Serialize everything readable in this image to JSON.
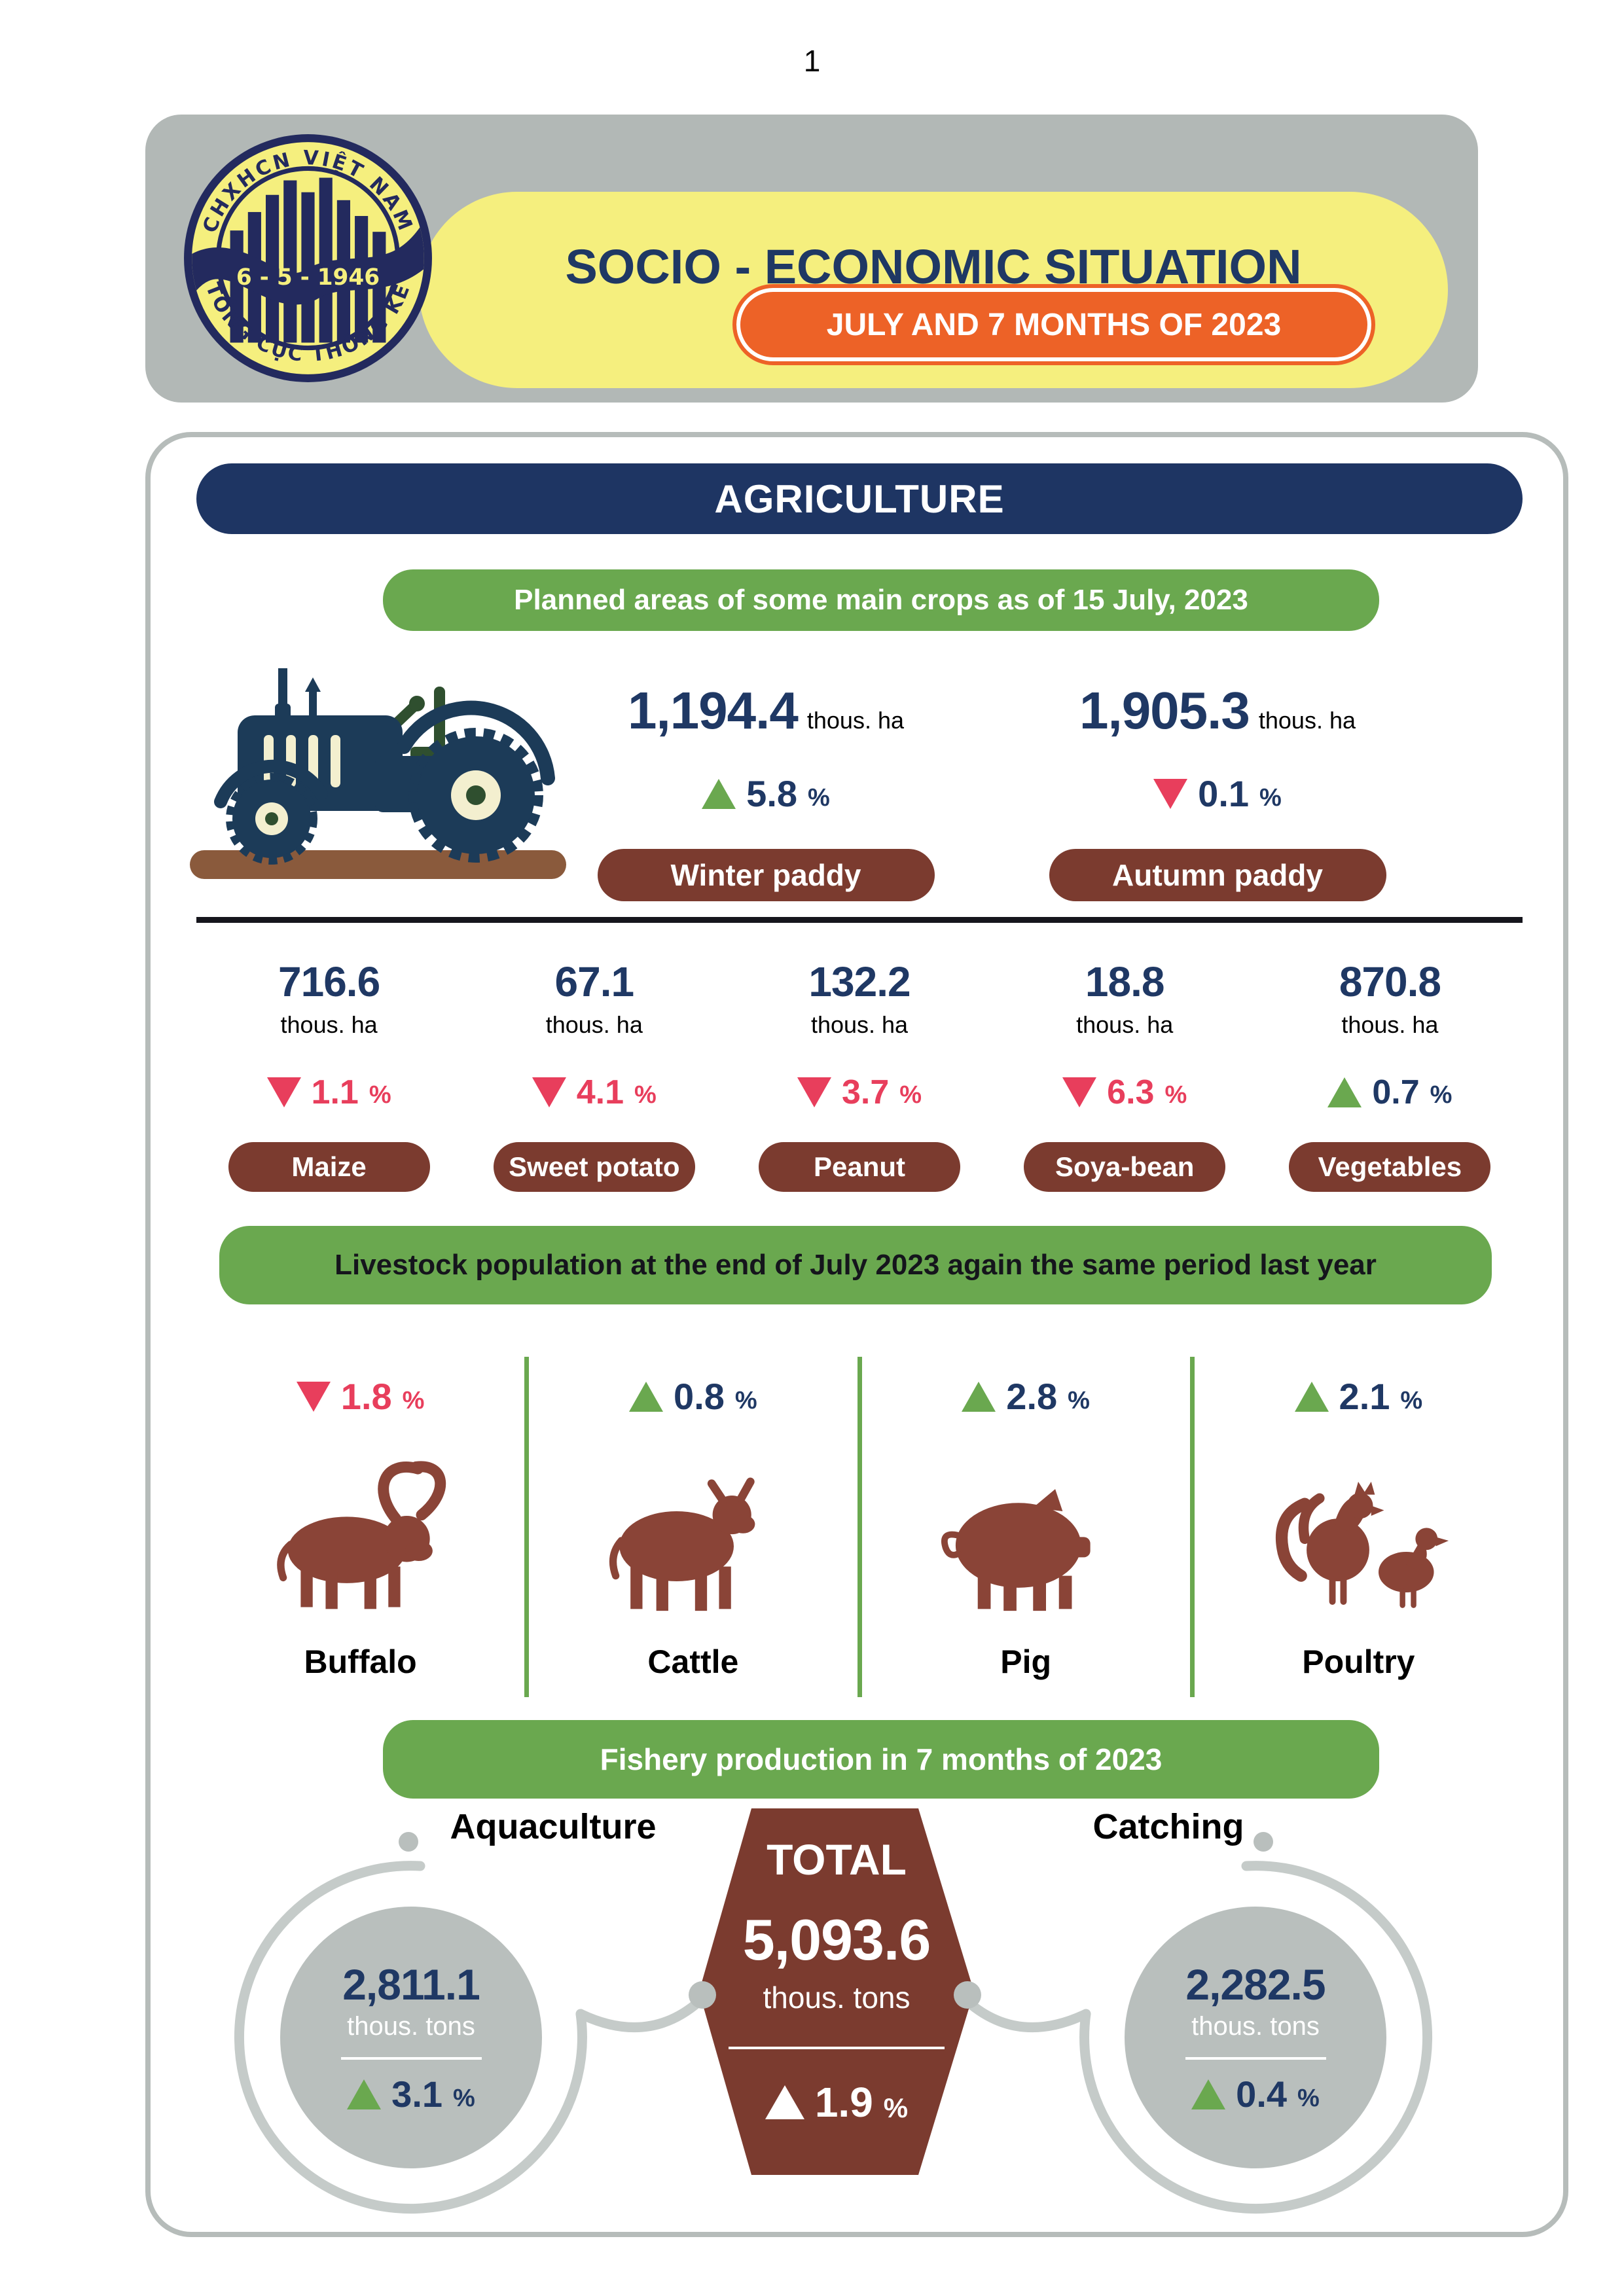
{
  "page": {
    "number": "1"
  },
  "ui": {
    "percent": "%"
  },
  "header": {
    "title": "SOCIO - ECONOMIC SITUATION",
    "subtitle": "JULY AND 7 MONTHS OF 2023",
    "logo": {
      "top_text": "CHXHCN VIỆT NAM",
      "band_text": "6 - 5 - 1946",
      "bottom_text": "TỔNG CỤC THỐNG KÊ"
    }
  },
  "section": {
    "title": "AGRICULTURE"
  },
  "crops": {
    "banner": "Planned areas of some main crops as of 15 July, 2023",
    "paddies": [
      {
        "name": "Winter paddy",
        "value": "1,194.4",
        "unit": "thous. ha",
        "change": "5.8",
        "direction": "up"
      },
      {
        "name": "Autumn paddy",
        "value": "1,905.3",
        "unit": "thous. ha",
        "change": "0.1",
        "direction": "down"
      }
    ],
    "others": [
      {
        "name": "Maize",
        "value": "716.6",
        "unit": "thous. ha",
        "change": "1.1",
        "direction": "down"
      },
      {
        "name": "Sweet potato",
        "value": "67.1",
        "unit": "thous. ha",
        "change": "4.1",
        "direction": "down"
      },
      {
        "name": "Peanut",
        "value": "132.2",
        "unit": "thous. ha",
        "change": "3.7",
        "direction": "down"
      },
      {
        "name": "Soya-bean",
        "value": "18.8",
        "unit": "thous. ha",
        "change": "6.3",
        "direction": "down"
      },
      {
        "name": "Vegetables",
        "value": "870.8",
        "unit": "thous. ha",
        "change": "0.7",
        "direction": "up"
      }
    ]
  },
  "livestock": {
    "banner": "Livestock population at the end of July 2023 again the same period last year",
    "items": [
      {
        "name": "Buffalo",
        "change": "1.8",
        "direction": "down",
        "icon": "buffalo-icon"
      },
      {
        "name": "Cattle",
        "change": "0.8",
        "direction": "up",
        "icon": "cattle-icon"
      },
      {
        "name": "Pig",
        "change": "2.8",
        "direction": "up",
        "icon": "pig-icon"
      },
      {
        "name": "Poultry",
        "change": "2.1",
        "direction": "up",
        "icon": "poultry-icon"
      }
    ]
  },
  "fishery": {
    "banner": "Fishery production in 7 months of 2023",
    "aquaculture": {
      "label": "Aquaculture",
      "value": "2,811.1",
      "unit": "thous. tons",
      "change": "3.1",
      "direction": "up"
    },
    "total": {
      "label": "TOTAL",
      "value": "5,093.6",
      "unit": "thous. tons",
      "change": "1.9",
      "direction": "up"
    },
    "catching": {
      "label": "Catching",
      "value": "2,282.5",
      "unit": "thous. tons",
      "change": "0.4",
      "direction": "up"
    }
  },
  "colors": {
    "navy": "#1f3864",
    "banner_navy": "#1e3563",
    "green": "#6aa84f",
    "brown": "#7b3b2f",
    "animal_brown": "#8a4437",
    "red": "#e83e5c",
    "header_gray": "#b2b8b6",
    "yellow": "#f5ef7e",
    "orange": "#ed6227",
    "circle_gray": "#b9bfbd",
    "ring_gray": "#c5cbc9"
  }
}
